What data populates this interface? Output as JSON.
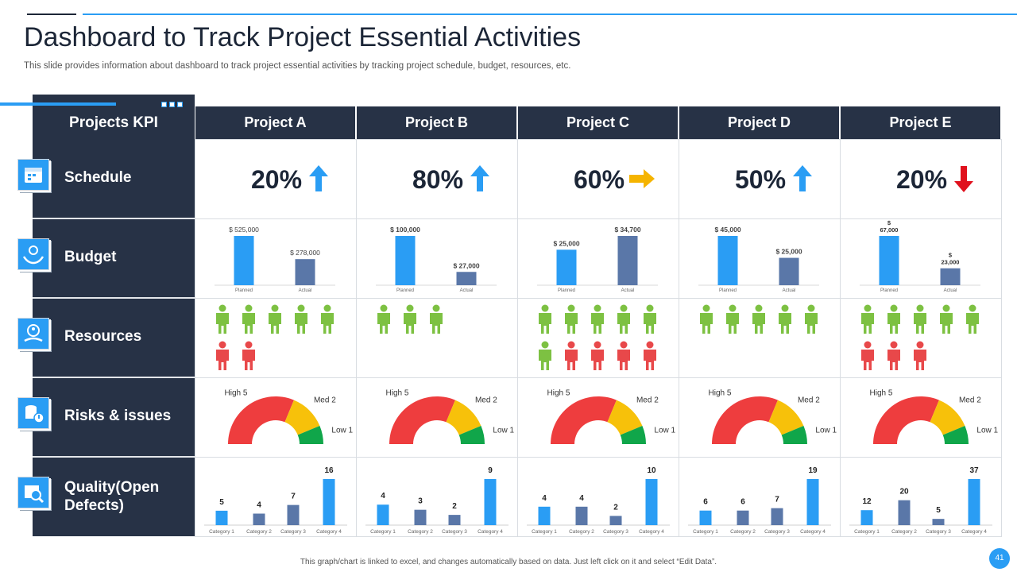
{
  "title": "Dashboard to Track Project Essential Activities",
  "subtitle": "This slide provides information about dashboard to track project essential activities by tracking project schedule, budget, resources, etc.",
  "footer": "This graph/chart is linked to excel, and changes automatically based on data. Just left click on it and select “Edit Data”.",
  "page_number": "41",
  "kpi_header": "Projects KPI",
  "rows": [
    {
      "label": "Schedule",
      "icon": "calendar-icon"
    },
    {
      "label": "Budget",
      "icon": "money-hands-icon"
    },
    {
      "label": "Resources",
      "icon": "people-coin-icon"
    },
    {
      "label": "Risks & issues",
      "icon": "coins-alert-icon"
    },
    {
      "label": "Quality(Open Defects)",
      "icon": "magnifier-gear-icon"
    }
  ],
  "colors": {
    "navy": "#273246",
    "accent_blue": "#2a9df4",
    "bar_blue": "#2a9df4",
    "bar_slate": "#5a77a8",
    "up_arrow": "#2a9df4",
    "right_arrow": "#f5b400",
    "down_arrow": "#e0111d",
    "person_green": "#7dc142",
    "person_red": "#e8484a",
    "gauge_high": "#ee3d3e",
    "gauge_med": "#f7c10a",
    "gauge_low": "#10a64a"
  },
  "projects": [
    {
      "name": "Project A",
      "schedule": "20%",
      "trend": "up"
    },
    {
      "name": "Project B",
      "schedule": "80%",
      "trend": "up"
    },
    {
      "name": "Project C",
      "schedule": "60%",
      "trend": "right"
    },
    {
      "name": "Project D",
      "schedule": "50%",
      "trend": "up"
    },
    {
      "name": "Project E",
      "schedule": "20%",
      "trend": "down"
    }
  ],
  "chart_data": [
    {
      "type": "bar",
      "row": "Budget",
      "project": "Project A",
      "categories": [
        "Planned",
        "Actual"
      ],
      "values": [
        525000,
        278000
      ],
      "labels": [
        "$ 525,000",
        "$ 278,000"
      ]
    },
    {
      "type": "bar",
      "row": "Budget",
      "project": "Project B",
      "categories": [
        "Planned",
        "Actual"
      ],
      "values": [
        100000,
        27000
      ],
      "labels": [
        "$ 100,000",
        "$ 27,000"
      ]
    },
    {
      "type": "bar",
      "row": "Budget",
      "project": "Project C",
      "categories": [
        "Planned",
        "Actual"
      ],
      "values": [
        25000,
        34700
      ],
      "labels": [
        "$ 25,000",
        "$ 34,700"
      ]
    },
    {
      "type": "bar",
      "row": "Budget",
      "project": "Project D",
      "categories": [
        "Planned",
        "Actual"
      ],
      "values": [
        45000,
        25000
      ],
      "labels": [
        "$ 45,000",
        "$ 25,000"
      ]
    },
    {
      "type": "bar",
      "row": "Budget",
      "project": "Project E",
      "categories": [
        "Planned",
        "Actual"
      ],
      "values": [
        67000,
        23000
      ],
      "labels": [
        [
          "$",
          "67,000"
        ],
        [
          "$",
          "23,000"
        ]
      ]
    },
    {
      "type": "pictogram",
      "row": "Resources",
      "project": "Project A",
      "available": 5,
      "unavailable": 2
    },
    {
      "type": "pictogram",
      "row": "Resources",
      "project": "Project B",
      "available": 3,
      "unavailable": 0
    },
    {
      "type": "pictogram",
      "row": "Resources",
      "project": "Project C",
      "available": 6,
      "unavailable": 4
    },
    {
      "type": "pictogram",
      "row": "Resources",
      "project": "Project D",
      "available": 5,
      "unavailable": 0
    },
    {
      "type": "pictogram",
      "row": "Resources",
      "project": "Project E",
      "available": 5,
      "unavailable": 3
    },
    {
      "type": "gauge",
      "row": "Risks & issues",
      "project": "Project A",
      "categories": [
        "High",
        "Med",
        "Low"
      ],
      "values": [
        5,
        2,
        1
      ]
    },
    {
      "type": "gauge",
      "row": "Risks & issues",
      "project": "Project B",
      "categories": [
        "High",
        "Med",
        "Low"
      ],
      "values": [
        5,
        2,
        1
      ]
    },
    {
      "type": "gauge",
      "row": "Risks & issues",
      "project": "Project C",
      "categories": [
        "High",
        "Med",
        "Low"
      ],
      "values": [
        5,
        2,
        1
      ]
    },
    {
      "type": "gauge",
      "row": "Risks & issues",
      "project": "Project D",
      "categories": [
        "High",
        "Med",
        "Low"
      ],
      "values": [
        5,
        2,
        1
      ]
    },
    {
      "type": "gauge",
      "row": "Risks & issues",
      "project": "Project E",
      "categories": [
        "High",
        "Med",
        "Low"
      ],
      "values": [
        5,
        2,
        1
      ]
    },
    {
      "type": "bar",
      "row": "Quality(Open Defects)",
      "project": "Project A",
      "categories": [
        "Category 1",
        "Category 2",
        "Category 3",
        "Category 4"
      ],
      "values": [
        5,
        4,
        7,
        16
      ]
    },
    {
      "type": "bar",
      "row": "Quality(Open Defects)",
      "project": "Project B",
      "categories": [
        "Category 1",
        "Category 2",
        "Category 3",
        "Category 4"
      ],
      "values": [
        4,
        3,
        2,
        9
      ]
    },
    {
      "type": "bar",
      "row": "Quality(Open Defects)",
      "project": "Project C",
      "categories": [
        "Category 1",
        "Category 2",
        "Category 3",
        "Category 4"
      ],
      "values": [
        4,
        4,
        2,
        10
      ]
    },
    {
      "type": "bar",
      "row": "Quality(Open Defects)",
      "project": "Project D",
      "categories": [
        "Category 1",
        "Category 2",
        "Category 3",
        "Category 4"
      ],
      "values": [
        6,
        6,
        7,
        19
      ]
    },
    {
      "type": "bar",
      "row": "Quality(Open Defects)",
      "project": "Project E",
      "categories": [
        "Category 1",
        "Category 2",
        "Category 3",
        "Category 4"
      ],
      "values": [
        12,
        20,
        5,
        37
      ]
    }
  ]
}
